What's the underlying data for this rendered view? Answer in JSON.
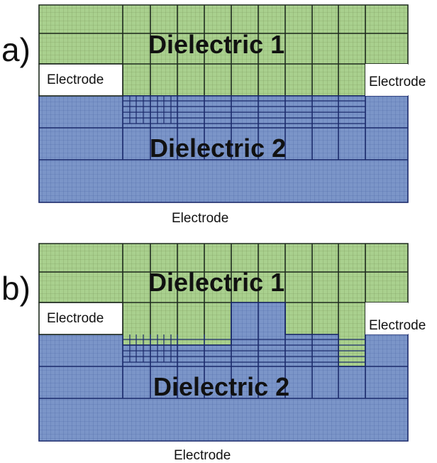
{
  "colors": {
    "dielectric_1": "#a9d08e",
    "dielectric_2": "#7b95c8",
    "mesh_green_line": "#7c9a5c",
    "mesh_blue_line": "#4e6aa8",
    "block_line_green": "#1f2b1f",
    "block_line_blue": "#1b2a6b",
    "electrode": "#ffffff"
  },
  "panel_a": {
    "letter": "a)",
    "dielectric_1_label": "Dielectric 1",
    "dielectric_2_label": "Dielectric 2",
    "electrode_left_label": "Electrode",
    "electrode_right_label": "Electrode",
    "electrode_bottom_label": "Electrode"
  },
  "panel_b": {
    "letter": "b)",
    "dielectric_1_label": "Dielectric 1",
    "dielectric_2_label": "Dielectric 2",
    "electrode_left_label": "Electrode",
    "electrode_right_label": "Electrode",
    "electrode_bottom_label": "Electrode"
  }
}
